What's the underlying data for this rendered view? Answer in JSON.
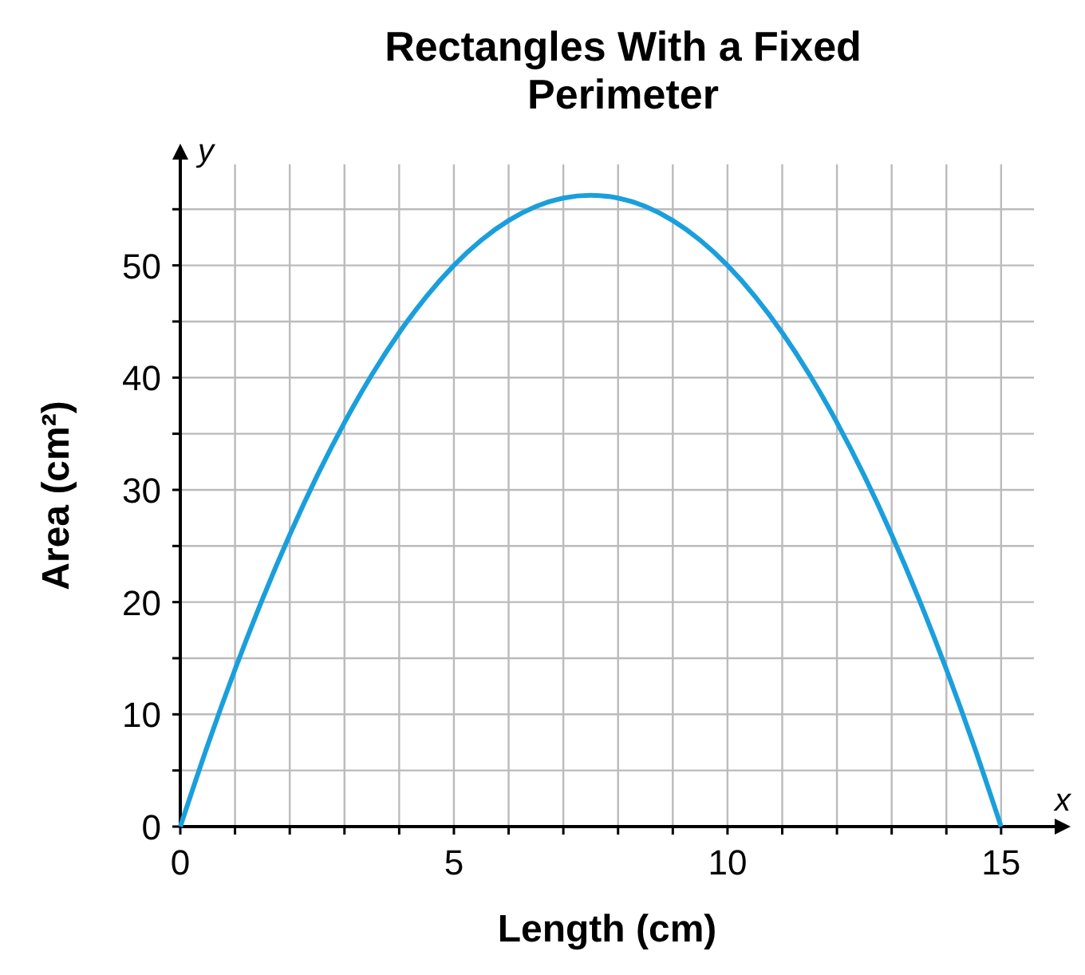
{
  "chart_data": {
    "type": "line",
    "title": "Rectangles With a Fixed Perimeter",
    "xlabel": "Length (cm)",
    "ylabel": "Area (cm²)",
    "x": [
      0,
      0.5,
      1,
      1.5,
      2,
      2.5,
      3,
      3.5,
      4,
      4.5,
      5,
      5.5,
      6,
      6.5,
      7,
      7.5,
      8,
      8.5,
      9,
      9.5,
      10,
      10.5,
      11,
      11.5,
      12,
      12.5,
      13,
      13.5,
      14,
      14.5,
      15
    ],
    "series": [
      {
        "color": "#1a9fdc",
        "values": [
          0,
          7.25,
          14,
          20.25,
          26,
          31.25,
          36,
          40.25,
          44,
          47.25,
          50,
          52.25,
          54,
          55.25,
          56,
          56.25,
          56,
          55.25,
          54,
          52.25,
          50,
          47.25,
          44,
          40.25,
          36,
          31.25,
          26,
          20.25,
          14,
          7.25,
          0
        ]
      }
    ],
    "xlim": [
      0,
      15.6
    ],
    "ylim": [
      0,
      59
    ],
    "xticks": [
      0,
      {
        "value": 1,
        "label": null
      },
      {
        "value": 2,
        "label": null
      },
      {
        "value": 3,
        "label": null
      },
      {
        "value": 4,
        "label": null
      },
      5,
      {
        "value": 6,
        "label": null
      },
      {
        "value": 7,
        "label": null
      },
      {
        "value": 8,
        "label": null
      },
      {
        "value": 9,
        "label": null
      },
      10,
      {
        "value": 11,
        "label": null
      },
      {
        "value": 12,
        "label": null
      },
      {
        "value": 13,
        "label": null
      },
      {
        "value": 14,
        "label": null
      },
      15
    ],
    "yticks": [
      0,
      {
        "value": 5,
        "label": null
      },
      10,
      {
        "value": 15,
        "label": null
      },
      20,
      {
        "value": 25,
        "label": null
      },
      30,
      {
        "value": 35,
        "label": null
      },
      40,
      {
        "value": 45,
        "label": null
      },
      50,
      {
        "value": 55,
        "label": null
      }
    ],
    "grid": true,
    "marker": "none",
    "line_style": "solid",
    "annotations": [
      "x",
      "y"
    ]
  }
}
